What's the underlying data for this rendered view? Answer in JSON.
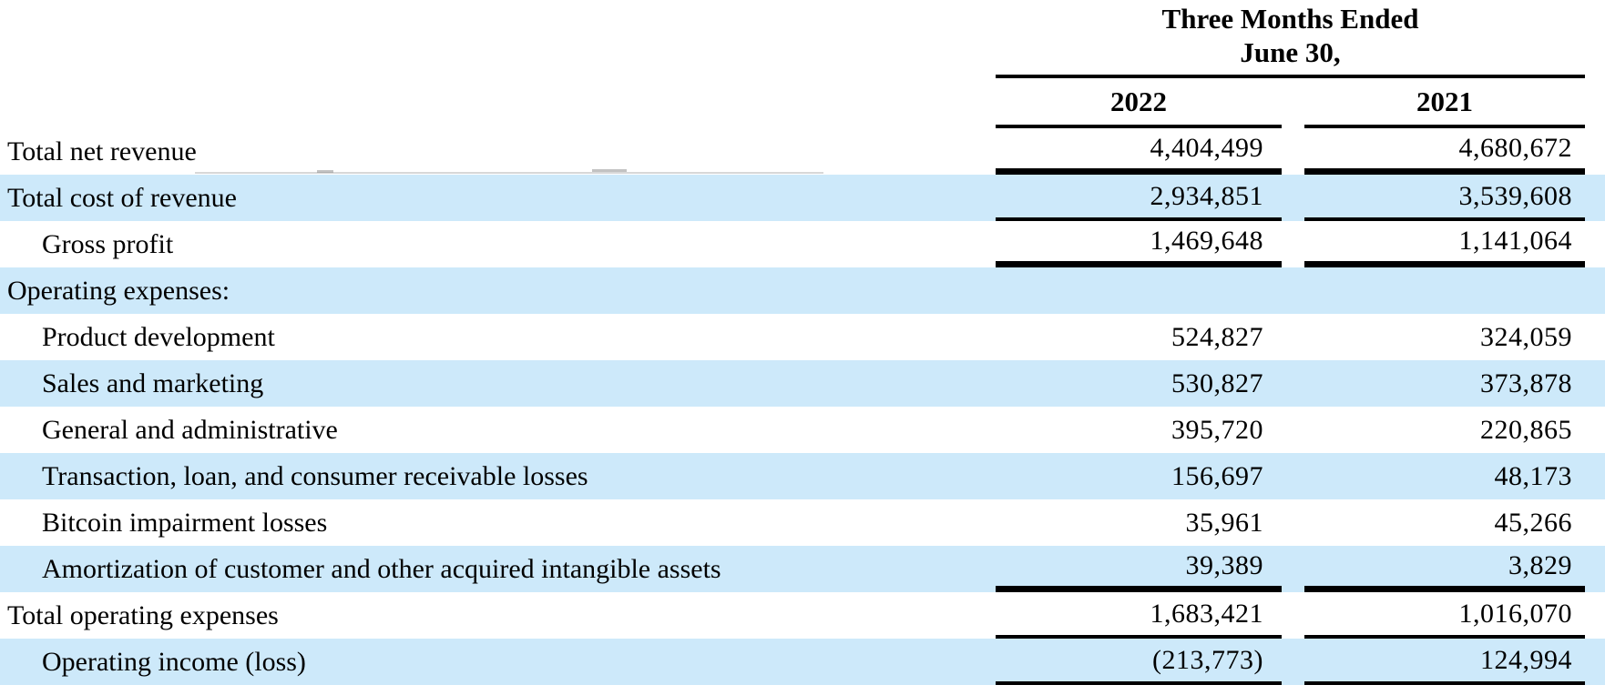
{
  "table": {
    "period_line1": "Three Months Ended",
    "period_line2": "June 30,",
    "columns": [
      "2022",
      "2021"
    ],
    "rows": [
      {
        "label": "Total net revenue",
        "indent": 0,
        "shaded": false,
        "rule_below": "thick",
        "values": [
          "4,404,499",
          "4,680,672"
        ]
      },
      {
        "label": "Total cost of revenue",
        "indent": 0,
        "shaded": true,
        "rule_below": "medium",
        "values": [
          "2,934,851",
          "3,539,608"
        ]
      },
      {
        "label": "Gross profit",
        "indent": 1,
        "shaded": false,
        "rule_below": "thick",
        "values": [
          "1,469,648",
          "1,141,064"
        ]
      },
      {
        "label": "Operating expenses:",
        "indent": 0,
        "shaded": true,
        "rule_below": "none",
        "values": [
          "",
          ""
        ]
      },
      {
        "label": "Product development",
        "indent": 1,
        "shaded": false,
        "rule_below": "none",
        "values": [
          "524,827",
          "324,059"
        ]
      },
      {
        "label": "Sales and marketing",
        "indent": 1,
        "shaded": true,
        "rule_below": "none",
        "values": [
          "530,827",
          "373,878"
        ]
      },
      {
        "label": "General and administrative",
        "indent": 1,
        "shaded": false,
        "rule_below": "none",
        "values": [
          "395,720",
          "220,865"
        ]
      },
      {
        "label": "Transaction, loan, and consumer receivable losses",
        "indent": 1,
        "shaded": true,
        "rule_below": "none",
        "values": [
          "156,697",
          "48,173"
        ]
      },
      {
        "label": "Bitcoin impairment losses",
        "indent": 1,
        "shaded": false,
        "rule_below": "none",
        "values": [
          "35,961",
          "45,266"
        ]
      },
      {
        "label": "Amortization of customer and other acquired intangible assets",
        "indent": 1,
        "shaded": true,
        "rule_below": "thick",
        "values": [
          "39,389",
          "3,829"
        ]
      },
      {
        "label": "Total operating expenses",
        "indent": 0,
        "shaded": false,
        "rule_below": "medium",
        "values": [
          "1,683,421",
          "1,016,070"
        ]
      },
      {
        "label": "Operating income (loss)",
        "indent": 1,
        "shaded": true,
        "rule_below": "medium",
        "values": [
          "(213,773)",
          "124,994"
        ]
      }
    ]
  },
  "colors": {
    "row_shade": "#cde9fa",
    "rule": "#000000",
    "text": "#000000"
  }
}
